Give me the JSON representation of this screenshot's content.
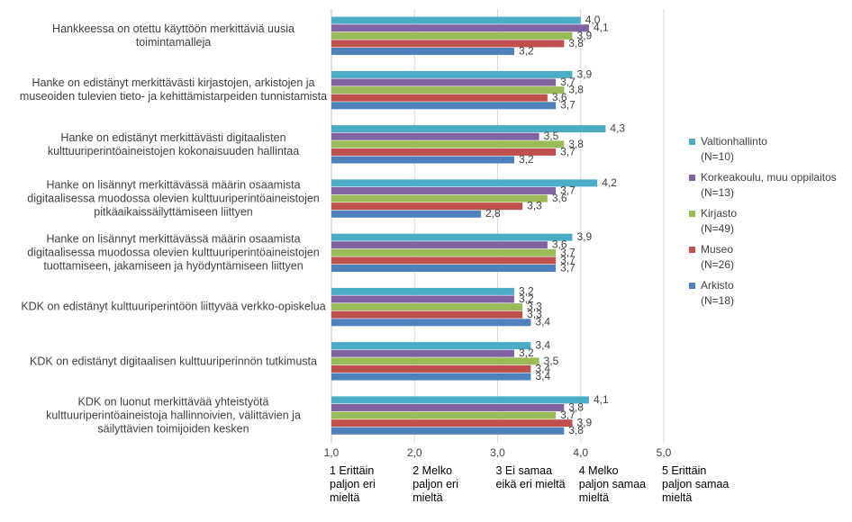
{
  "chart_data": {
    "type": "bar",
    "orientation": "horizontal",
    "categories": [
      "Hankkeessa on otettu käyttöön merkittäviä uusia toimintamalleja",
      "Hanke on edistänyt merkittävästi kirjastojen, arkistojen ja museoiden tulevien tieto- ja kehittämistarpeiden tunnistamista",
      "Hanke on edistänyt merkittävästi digitaalisten kulttuuriperintöaineistojen kokonaisuuden hallintaa",
      "Hanke on lisännyt merkittävässä määrin osaamista digitaalisessa muodossa olevien kulttuuriperintöaineistojen pitkäaikaissäilyttämiseen liittyen",
      "Hanke on lisännyt merkittävässä määrin osaamista digitaalisessa muodossa olevien kulttuuriperintöaineistojen tuottamiseen, jakamiseen ja hyödyntämiseen liittyen",
      "KDK on edistänyt kulttuuriperintöön liittyvää verkko-opiskelua",
      "KDK on edistänyt digitaalisen kulttuuriperinnön tutkimusta",
      "KDK on luonut merkittävää yhteistyötä kulttuuriperintöaineistoja hallinnoivien, välittävien ja säilyttävien toimijoiden kesken"
    ],
    "series": [
      {
        "name": "Valtionhallinto (N=10)",
        "color": "#4bacc6",
        "values": [
          4.0,
          3.9,
          4.3,
          4.2,
          3.9,
          3.2,
          3.4,
          4.1
        ],
        "value_labels": [
          "4,0",
          "3,9",
          "4,3",
          "4,2",
          "3,9",
          "3,2",
          "3,4",
          "4,1"
        ]
      },
      {
        "name": "Korkeakoulu, muu oppilaitos (N=13)",
        "color": "#8064a2",
        "values": [
          4.1,
          3.7,
          3.5,
          3.7,
          3.6,
          3.2,
          3.2,
          3.8
        ],
        "value_labels": [
          "4,1",
          "3,7",
          "3,5",
          "3,7",
          "3,6",
          "3,2",
          "3,2",
          "3,8"
        ]
      },
      {
        "name": "Kirjasto (N=49)",
        "color": "#9bbb59",
        "values": [
          3.9,
          3.8,
          3.8,
          3.6,
          3.7,
          3.3,
          3.5,
          3.7
        ],
        "value_labels": [
          "3,9",
          "3,8",
          "3,8",
          "3,6",
          "3,7",
          "3,3",
          "3,5",
          "3,7"
        ]
      },
      {
        "name": "Museo (N=26)",
        "color": "#c0504d",
        "values": [
          3.8,
          3.6,
          3.7,
          3.3,
          3.7,
          3.3,
          3.4,
          3.9
        ],
        "value_labels": [
          "3,8",
          "3,6",
          "3,7",
          "3,3",
          "3,7",
          "3,3",
          "3,4",
          "3,9"
        ]
      },
      {
        "name": "Arkisto (N=18)",
        "color": "#4f81bd",
        "values": [
          3.2,
          3.7,
          3.2,
          2.8,
          3.7,
          3.4,
          3.4,
          3.8
        ],
        "value_labels": [
          "3,2",
          "3,7",
          "3,2",
          "2,8",
          "3,7",
          "3,4",
          "3,4",
          "3,8"
        ]
      }
    ],
    "xlim": [
      1,
      5
    ],
    "xticks": [
      {
        "value": 1,
        "label": "1,0"
      },
      {
        "value": 2,
        "label": "2,0"
      },
      {
        "value": 3,
        "label": "3,0"
      },
      {
        "value": 4,
        "label": "4,0"
      },
      {
        "value": 5,
        "label": "5,0"
      }
    ],
    "scale_labels": [
      "1 Erittäin paljon eri mieltä",
      "2 Melko paljon eri mieltä",
      "3 Ei samaa eikä eri mieltä",
      "4 Melko paljon samaa mieltä",
      "5 Erittäin paljon samaa mieltä"
    ],
    "grid": true,
    "legend": "right"
  }
}
